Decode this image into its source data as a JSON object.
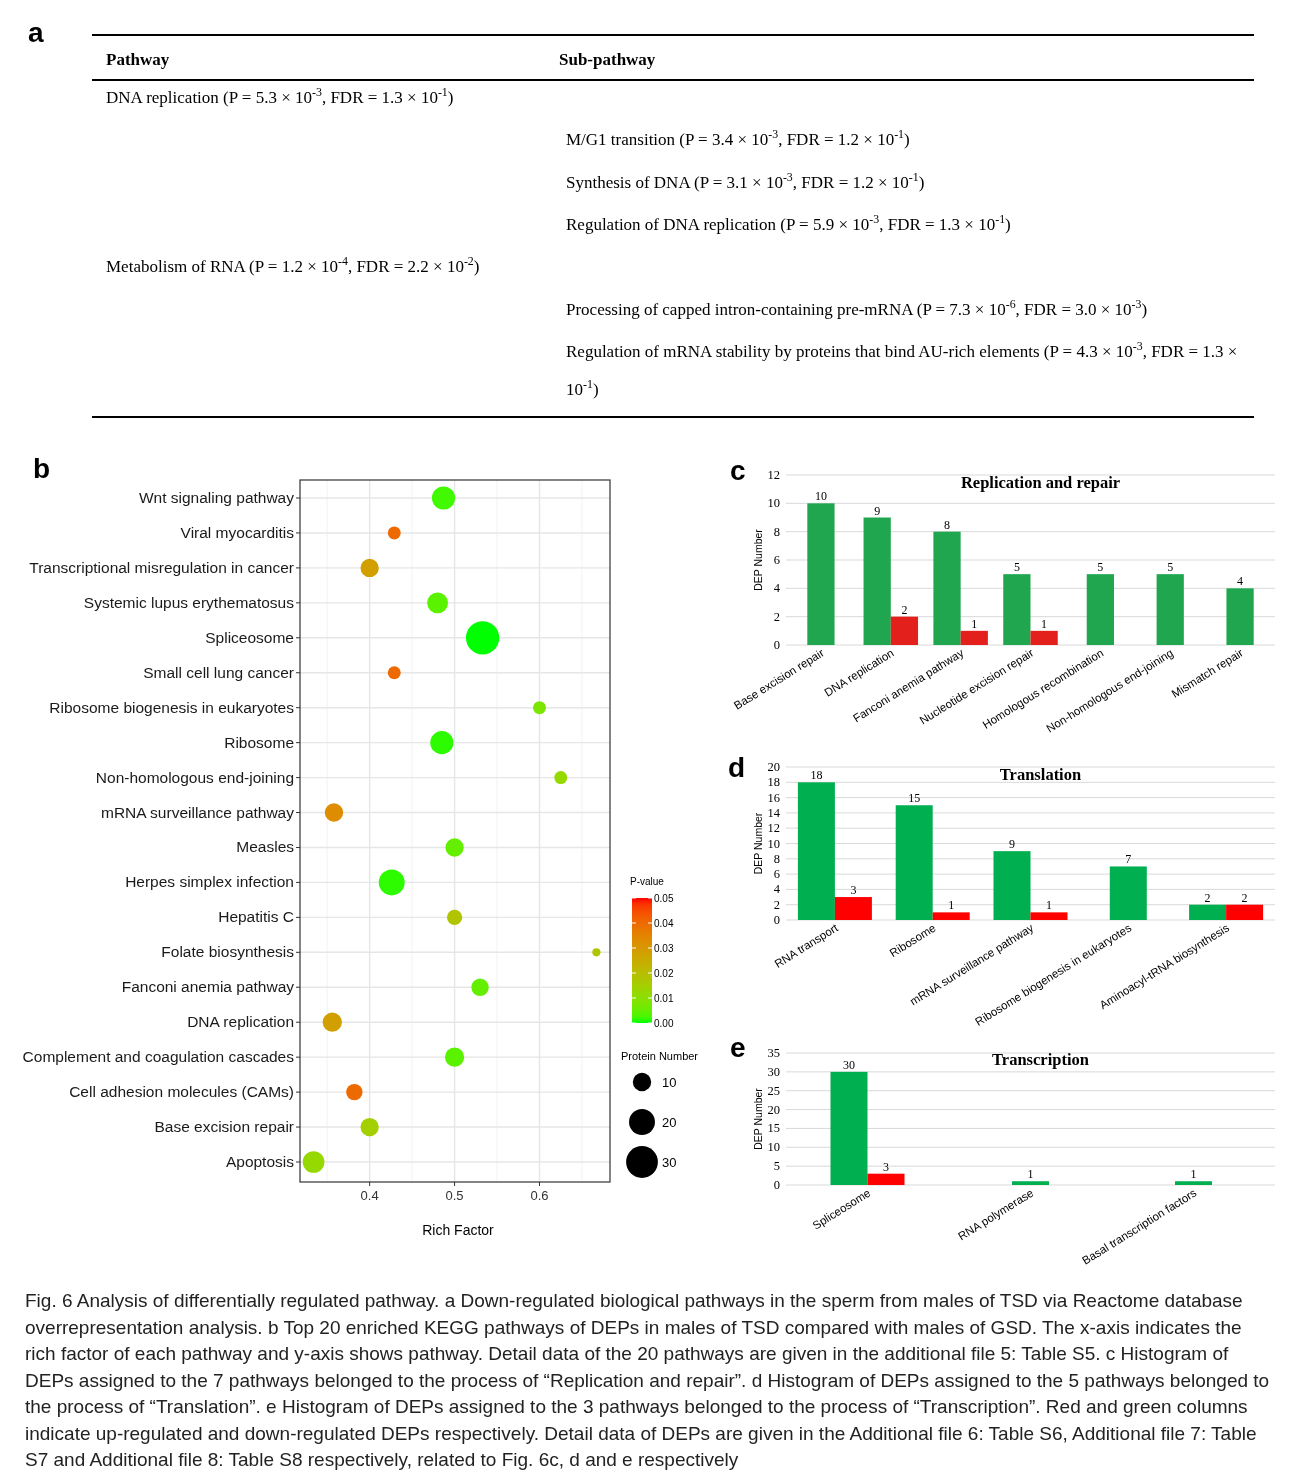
{
  "chart_data": [
    {
      "type": "other",
      "categories": [
        "Pathway",
        "Sub-pathway"
      ],
      "annotations": [
        "a",
        "DNA replication (P = 5.3 × 10$^{-3}$, FDR = 1.3 × 10$^{-1}$)",
        "M/G1 transition (P = 3.4 × 10$^{-3}$, FDR = 1.2 × 10$^{-1}$)",
        "Synthesis of DNA (P = 3.1 × 10$^{-3}$, FDR = 1.2 × 10$^{-1}$)",
        "Regulation of DNA replication (P = 5.9 × 10$^{-3}$, FDR = 1.3 × 10$^{-1}$)",
        "Metabolism of RNA (P = 1.2 × 10$^{-4}$, FDR = 2.2 × 10$^{-2}$)",
        "Processing of capped intron-containing pre-mRNA (P = 7.3 × 10$^{-6}$, FDR = 3.0 × 10$^{-3}$)",
        "Regulation of mRNA stability by proteins that bind AU-rich elements (P = 4.3 × 10$^{-3}$, FDR = 1.3 × 10$^{-1}$)",
        "Fig. 6 Analysis of differentially regulated pathway. a Down-regulated biological pathways in the sperm from males of TSD via Reactome database overrepresentation analysis. b Top 20 enriched KEGG pathways of DEPs in males of TSD compared with males of GSD. The x-axis indicates the rich factor of each pathway and y-axis shows pathway. Detail data of the 20 pathways are given in the additional file 5: Table S5. c Histogram of DEPs assigned to the 7 pathways belonged to the process of “Replication and repair”. d Histogram of DEPs assigned to the 5 pathways belonged to the process of “Translation”. e Histogram of DEPs assigned to the 3 pathways belonged to the process of “Transcription”. Red and green columns indicate up-regulated and down-regulated DEPs respectively. Detail data of DEPs are given in the Additional file 6: Table S6, Additional file 7: Table S7 and Additional file 8: Table S8 respectively, related to Fig. 6c, d and e respectively"
      ]
    },
    {
      "type": "bubble",
      "orientation": "horizontal",
      "annotations": [
        "b"
      ],
      "xlabel": "Rich Factor",
      "clabel": "P-value",
      "legend_title": "Protein Number",
      "grid": true,
      "categories": [
        "Wnt signaling pathway",
        "Viral myocarditis",
        "Transcriptional misregulation in cancer",
        "Systemic lupus erythematosus",
        "Spliceosome",
        "Small cell lung cancer",
        "Ribosome biogenesis in eukaryotes",
        "Ribosome",
        "Non-homologous end-joining",
        "mRNA surveillance pathway",
        "Measles",
        "Herpes simplex infection",
        "Hepatitis C",
        "Folate biosynthesis",
        "Fanconi anemia pathway",
        "DNA replication",
        "Complement and coagulation cascades",
        "Cell adhesion molecules (CAMs)",
        "Base excision repair",
        "Apoptosis"
      ],
      "values": [
        0.487,
        0.429,
        0.4,
        0.48,
        0.533,
        0.429,
        0.6,
        0.485,
        0.625,
        0.358,
        0.5,
        0.426,
        0.5,
        0.667,
        0.53,
        0.356,
        0.5,
        0.382,
        0.4,
        0.334
      ],
      "sizes": [
        16,
        5,
        10,
        13,
        33,
        5,
        5,
        16,
        5,
        10,
        10,
        20,
        7,
        2,
        9,
        11,
        11,
        8,
        10,
        14
      ],
      "cvalues": [
        0.002,
        0.04,
        0.028,
        0.004,
        0,
        0.04,
        0.008,
        0.001,
        0.012,
        0.033,
        0.005,
        0.001,
        0.018,
        0.018,
        0.005,
        0.028,
        0.004,
        0.04,
        0.015,
        0.012
      ],
      "size_legend": [
        10,
        20,
        30
      ],
      "xlim": [
        0.318,
        0.683
      ],
      "xticks": [
        0.4,
        0.5,
        0.6
      ],
      "clim": [
        0,
        0.05
      ],
      "cticks": [
        {
          "value": 0,
          "label": "0.00"
        },
        {
          "value": 0.01,
          "label": "0.01"
        },
        {
          "value": 0.02,
          "label": "0.02"
        },
        {
          "value": 0.03,
          "label": "0.03"
        },
        {
          "value": 0.04,
          "label": "0.04"
        },
        {
          "value": 0.05,
          "label": "0.05"
        }
      ]
    },
    {
      "type": "bar",
      "annotations": [
        "c"
      ],
      "title": "Replication and repair",
      "ylabel": "DEP Number",
      "grid": "y",
      "data_labels": true,
      "categories": [
        "Base excision repair",
        "DNA replication",
        "Fanconi anemia pathway",
        "Nucleotide excision repair",
        "Homologous recombination",
        "Non-homologous end-joining",
        "Mismatch repair"
      ],
      "series": [
        {
          "color": "#1fa64f",
          "values": [
            10,
            9,
            8,
            5,
            5,
            5,
            4
          ]
        },
        {
          "color": "#e3201b",
          "values": [
            null,
            2,
            1,
            1,
            null,
            null,
            null
          ]
        }
      ],
      "ylim": [
        0,
        12
      ],
      "yticks": [
        0,
        2,
        4,
        6,
        8,
        10,
        12
      ]
    },
    {
      "type": "bar",
      "annotations": [
        "d"
      ],
      "title": "Translation",
      "ylabel": "DEP Number",
      "grid": "y",
      "data_labels": true,
      "categories": [
        "RNA transport",
        "Ribosome",
        "mRNA surveillance pathway",
        "Ribosome biogenesis in eukaryotes",
        "Aminoacyl-tRNA biosynthesis"
      ],
      "series": [
        {
          "color": "#00b050",
          "values": [
            18,
            15,
            9,
            7,
            2
          ]
        },
        {
          "color": "#ff0000",
          "values": [
            3,
            1,
            1,
            null,
            2
          ]
        }
      ],
      "ylim": [
        0,
        20
      ],
      "yticks": [
        0,
        2,
        4,
        6,
        8,
        10,
        12,
        14,
        16,
        18,
        20
      ]
    },
    {
      "type": "bar",
      "annotations": [
        "e"
      ],
      "title": "Transcription",
      "ylabel": "DEP Number",
      "grid": "y",
      "data_labels": true,
      "categories": [
        "Spliceosome",
        "RNA polymerase",
        "Basal transcription factors"
      ],
      "series": [
        {
          "color": "#00b050",
          "values": [
            30,
            1,
            1
          ]
        },
        {
          "color": "#ff0000",
          "values": [
            3,
            null,
            null
          ]
        }
      ],
      "ylim": [
        0,
        35
      ],
      "yticks": [
        0,
        5,
        10,
        15,
        20,
        25,
        30,
        35
      ]
    }
  ]
}
